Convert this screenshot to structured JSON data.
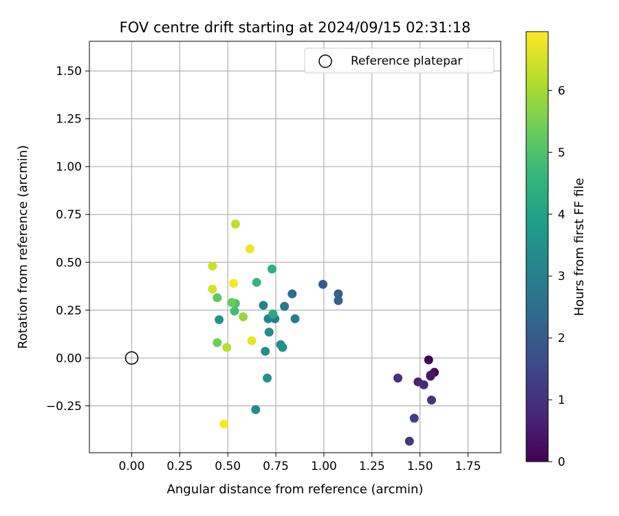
{
  "chart_data": {
    "type": "scatter",
    "title": "FOV centre drift starting at 2024/09/15 02:31:18",
    "xlabel": "Angular distance from reference (arcmin)",
    "ylabel": "Rotation from reference (arcmin)",
    "xlim": [
      -0.22,
      1.92
    ],
    "ylim": [
      -0.495,
      1.655
    ],
    "xticks": [
      0.0,
      0.25,
      0.5,
      0.75,
      1.0,
      1.25,
      1.5,
      1.75
    ],
    "xtick_labels": [
      "0.00",
      "0.25",
      "0.50",
      "0.75",
      "1.00",
      "1.25",
      "1.50",
      "1.75"
    ],
    "yticks": [
      -0.25,
      0.0,
      0.25,
      0.5,
      0.75,
      1.0,
      1.25,
      1.5
    ],
    "ytick_labels": [
      "−0.25",
      "0.00",
      "0.25",
      "0.50",
      "0.75",
      "1.00",
      "1.25",
      "1.50"
    ],
    "grid": true,
    "legend": {
      "position": "top-right",
      "label": "Reference platepar"
    },
    "reference_point": {
      "x": 0.0,
      "y": 0.0
    },
    "colorbar": {
      "label": "Hours from first FF file",
      "min": 0,
      "max": 6.95,
      "ticks": [
        0,
        1,
        2,
        3,
        4,
        5,
        6
      ],
      "tick_labels": [
        "0",
        "1",
        "2",
        "3",
        "4",
        "5",
        "6"
      ],
      "colormap": "viridis"
    },
    "series": [
      {
        "x": [
          1.545,
          1.575,
          1.555,
          1.555,
          1.49,
          1.52,
          1.385,
          1.56,
          1.47,
          1.445,
          0.995,
          1.075,
          1.075,
          0.835,
          0.795,
          0.85,
          0.745,
          0.685,
          0.71,
          0.715,
          0.775,
          0.785,
          0.695,
          0.705,
          0.645,
          0.455,
          0.735,
          0.73,
          0.65,
          0.535,
          0.54,
          0.445,
          0.52,
          0.445,
          0.58,
          0.495,
          0.54,
          0.42,
          0.42,
          0.625,
          0.615,
          0.53,
          0.48
        ],
        "y": [
          -0.01,
          -0.075,
          -0.09,
          -0.095,
          -0.125,
          -0.14,
          -0.105,
          -0.22,
          -0.315,
          -0.435,
          0.385,
          0.335,
          0.3,
          0.335,
          0.27,
          0.205,
          0.205,
          0.275,
          0.205,
          0.135,
          0.07,
          0.055,
          0.035,
          -0.105,
          -0.27,
          0.2,
          0.23,
          0.465,
          0.395,
          0.245,
          0.285,
          0.315,
          0.29,
          0.08,
          0.215,
          0.055,
          0.7,
          0.48,
          0.36,
          0.09,
          0.57,
          0.39,
          -0.345
        ],
        "hours": [
          0.05,
          0.15,
          0.3,
          0.45,
          0.7,
          0.85,
          1.0,
          1.15,
          1.3,
          1.1,
          2.0,
          2.1,
          2.2,
          2.5,
          2.7,
          2.9,
          3.0,
          3.1,
          3.2,
          3.3,
          3.45,
          3.55,
          3.4,
          3.5,
          3.35,
          3.6,
          4.2,
          4.4,
          4.6,
          4.8,
          5.0,
          5.2,
          5.3,
          5.4,
          5.9,
          6.2,
          6.3,
          6.4,
          6.5,
          6.7,
          6.8,
          6.9,
          6.95
        ]
      }
    ]
  }
}
